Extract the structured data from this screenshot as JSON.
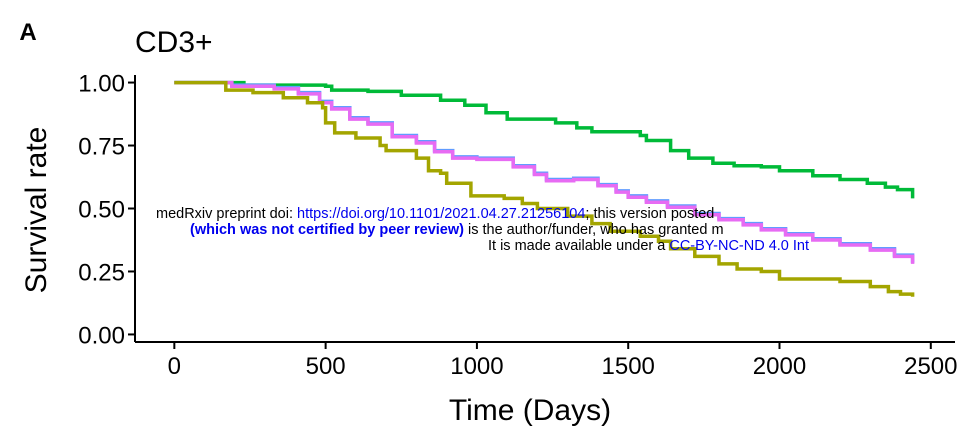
{
  "panel_label": "A",
  "watermark": {
    "line1_prefix": "medRxiv preprint doi: ",
    "line1_link": "https://doi.org/10.1101/2021.04.27.21256104",
    "line1_suffix": "; this version posted",
    "line2_bold": "(which was not certified by peer review)",
    "line2_suffix": " is the author/funder, who has granted m",
    "line3_prefix": "It is made available under a ",
    "line3_link": "CC-BY-NC-ND 4.0 Int",
    "link_color": "#0000ee"
  },
  "chart_data": {
    "type": "line",
    "title": "CD3+",
    "xlabel": "Time (Days)",
    "ylabel": "Survival rate",
    "xlim": [
      -130,
      2580
    ],
    "ylim": [
      -0.03,
      1.03
    ],
    "x_ticks": [
      0,
      500,
      1000,
      1500,
      2000,
      2500
    ],
    "x_tick_labels": [
      "0",
      "500",
      "1000",
      "1500",
      "2000",
      "2500"
    ],
    "y_ticks": [
      0.0,
      0.25,
      0.5,
      0.75,
      1.0
    ],
    "y_tick_labels": [
      "0.00",
      "0.25",
      "0.50",
      "0.75",
      "1.00"
    ],
    "grid": false,
    "series": [
      {
        "color": "#00ba38",
        "points": [
          [
            0,
            1.0
          ],
          [
            200,
            1.0
          ],
          [
            230,
            0.99
          ],
          [
            500,
            0.985
          ],
          [
            520,
            0.97
          ],
          [
            640,
            0.965
          ],
          [
            750,
            0.95
          ],
          [
            880,
            0.93
          ],
          [
            960,
            0.91
          ],
          [
            1030,
            0.88
          ],
          [
            1100,
            0.855
          ],
          [
            1220,
            0.855
          ],
          [
            1260,
            0.84
          ],
          [
            1330,
            0.82
          ],
          [
            1380,
            0.805
          ],
          [
            1500,
            0.805
          ],
          [
            1540,
            0.79
          ],
          [
            1560,
            0.77
          ],
          [
            1640,
            0.73
          ],
          [
            1700,
            0.7
          ],
          [
            1780,
            0.68
          ],
          [
            1850,
            0.67
          ],
          [
            1940,
            0.665
          ],
          [
            2000,
            0.65
          ],
          [
            2110,
            0.63
          ],
          [
            2200,
            0.615
          ],
          [
            2290,
            0.6
          ],
          [
            2350,
            0.585
          ],
          [
            2390,
            0.575
          ],
          [
            2440,
            0.54
          ]
        ]
      },
      {
        "color": "#619cff",
        "points": [
          [
            0,
            1.0
          ],
          [
            160,
            1.0
          ],
          [
            190,
            0.99
          ],
          [
            330,
            0.98
          ],
          [
            410,
            0.96
          ],
          [
            480,
            0.925
          ],
          [
            520,
            0.9
          ],
          [
            580,
            0.86
          ],
          [
            640,
            0.84
          ],
          [
            720,
            0.79
          ],
          [
            800,
            0.765
          ],
          [
            860,
            0.73
          ],
          [
            920,
            0.705
          ],
          [
            1000,
            0.7
          ],
          [
            1120,
            0.67
          ],
          [
            1190,
            0.64
          ],
          [
            1230,
            0.615
          ],
          [
            1320,
            0.62
          ],
          [
            1400,
            0.595
          ],
          [
            1460,
            0.57
          ],
          [
            1500,
            0.55
          ],
          [
            1560,
            0.53
          ],
          [
            1630,
            0.51
          ],
          [
            1720,
            0.48
          ],
          [
            1800,
            0.46
          ],
          [
            1880,
            0.44
          ],
          [
            1940,
            0.42
          ],
          [
            2020,
            0.4
          ],
          [
            2110,
            0.38
          ],
          [
            2200,
            0.36
          ],
          [
            2300,
            0.34
          ],
          [
            2380,
            0.315
          ],
          [
            2440,
            0.285
          ]
        ]
      },
      {
        "color": "#e76bf3",
        "points": [
          [
            0,
            1.0
          ],
          [
            160,
            1.0
          ],
          [
            190,
            0.985
          ],
          [
            330,
            0.975
          ],
          [
            410,
            0.955
          ],
          [
            480,
            0.92
          ],
          [
            520,
            0.895
          ],
          [
            580,
            0.855
          ],
          [
            640,
            0.835
          ],
          [
            720,
            0.785
          ],
          [
            800,
            0.76
          ],
          [
            860,
            0.725
          ],
          [
            920,
            0.7
          ],
          [
            1000,
            0.695
          ],
          [
            1120,
            0.665
          ],
          [
            1190,
            0.635
          ],
          [
            1230,
            0.61
          ],
          [
            1320,
            0.615
          ],
          [
            1400,
            0.59
          ],
          [
            1460,
            0.565
          ],
          [
            1500,
            0.545
          ],
          [
            1560,
            0.525
          ],
          [
            1630,
            0.505
          ],
          [
            1720,
            0.475
          ],
          [
            1800,
            0.455
          ],
          [
            1880,
            0.435
          ],
          [
            1940,
            0.415
          ],
          [
            2020,
            0.395
          ],
          [
            2110,
            0.375
          ],
          [
            2200,
            0.355
          ],
          [
            2300,
            0.335
          ],
          [
            2380,
            0.31
          ],
          [
            2440,
            0.28
          ]
        ]
      },
      {
        "color": "#a3a500",
        "points": [
          [
            0,
            1.0
          ],
          [
            160,
            1.0
          ],
          [
            170,
            0.97
          ],
          [
            260,
            0.96
          ],
          [
            360,
            0.94
          ],
          [
            440,
            0.92
          ],
          [
            490,
            0.9
          ],
          [
            500,
            0.84
          ],
          [
            530,
            0.8
          ],
          [
            600,
            0.78
          ],
          [
            680,
            0.75
          ],
          [
            700,
            0.73
          ],
          [
            800,
            0.7
          ],
          [
            840,
            0.65
          ],
          [
            880,
            0.64
          ],
          [
            900,
            0.6
          ],
          [
            980,
            0.55
          ],
          [
            1090,
            0.54
          ],
          [
            1150,
            0.52
          ],
          [
            1200,
            0.5
          ],
          [
            1300,
            0.47
          ],
          [
            1380,
            0.44
          ],
          [
            1440,
            0.41
          ],
          [
            1540,
            0.39
          ],
          [
            1600,
            0.37
          ],
          [
            1640,
            0.34
          ],
          [
            1720,
            0.31
          ],
          [
            1800,
            0.28
          ],
          [
            1860,
            0.26
          ],
          [
            1940,
            0.25
          ],
          [
            2000,
            0.22
          ],
          [
            2200,
            0.21
          ],
          [
            2300,
            0.19
          ],
          [
            2360,
            0.17
          ],
          [
            2400,
            0.16
          ],
          [
            2440,
            0.15
          ]
        ]
      }
    ]
  }
}
